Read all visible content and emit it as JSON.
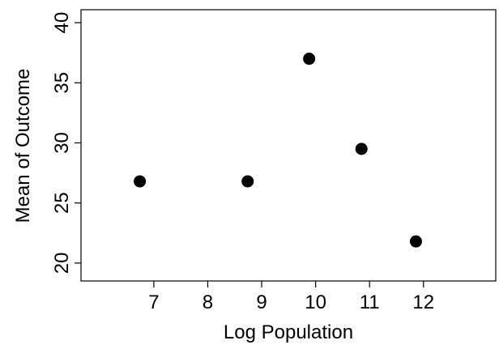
{
  "chart_data": {
    "type": "scatter",
    "x_label": "Log Population",
    "y_label": "Mean of Outcome",
    "x": [
      6.74,
      8.74,
      9.88,
      10.85,
      11.86
    ],
    "values": [
      26.8,
      26.8,
      37.0,
      29.5,
      21.8
    ],
    "color": "#000000",
    "xlim": [
      5.65,
      13.34
    ],
    "xticks": [
      7,
      8,
      9,
      10,
      11,
      12
    ],
    "ylim": [
      18.51,
      41.08
    ],
    "yticks": [
      20,
      25,
      30,
      35,
      40
    ]
  }
}
